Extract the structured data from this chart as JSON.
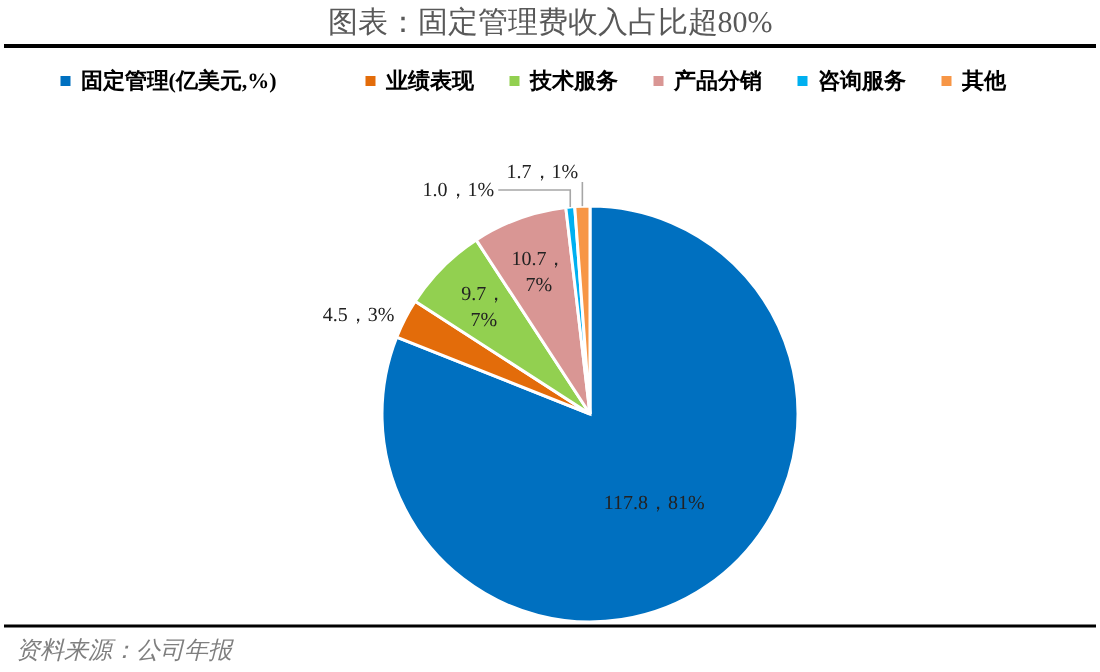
{
  "chart_data": {
    "type": "pie",
    "title": "图表：固定管理费收入占比超80%",
    "categories": [
      "固定管理(亿美元,%)",
      "业绩表现",
      "技术服务",
      "产品分销",
      "咨询服务",
      "其他"
    ],
    "values": [
      117.8,
      4.5,
      9.7,
      10.7,
      1.0,
      1.7
    ],
    "colors": [
      "#0070c0",
      "#e36c0a",
      "#92d050",
      "#d99694",
      "#00b0f0",
      "#f79646"
    ],
    "value_labels": [
      "117.8，81%",
      "4.5，3%",
      "9.7，7%",
      "10.7，7%",
      "1.0，1%",
      "1.7，1%"
    ],
    "legend": "top",
    "annotations": [
      "资料来源：公司年报"
    ]
  }
}
